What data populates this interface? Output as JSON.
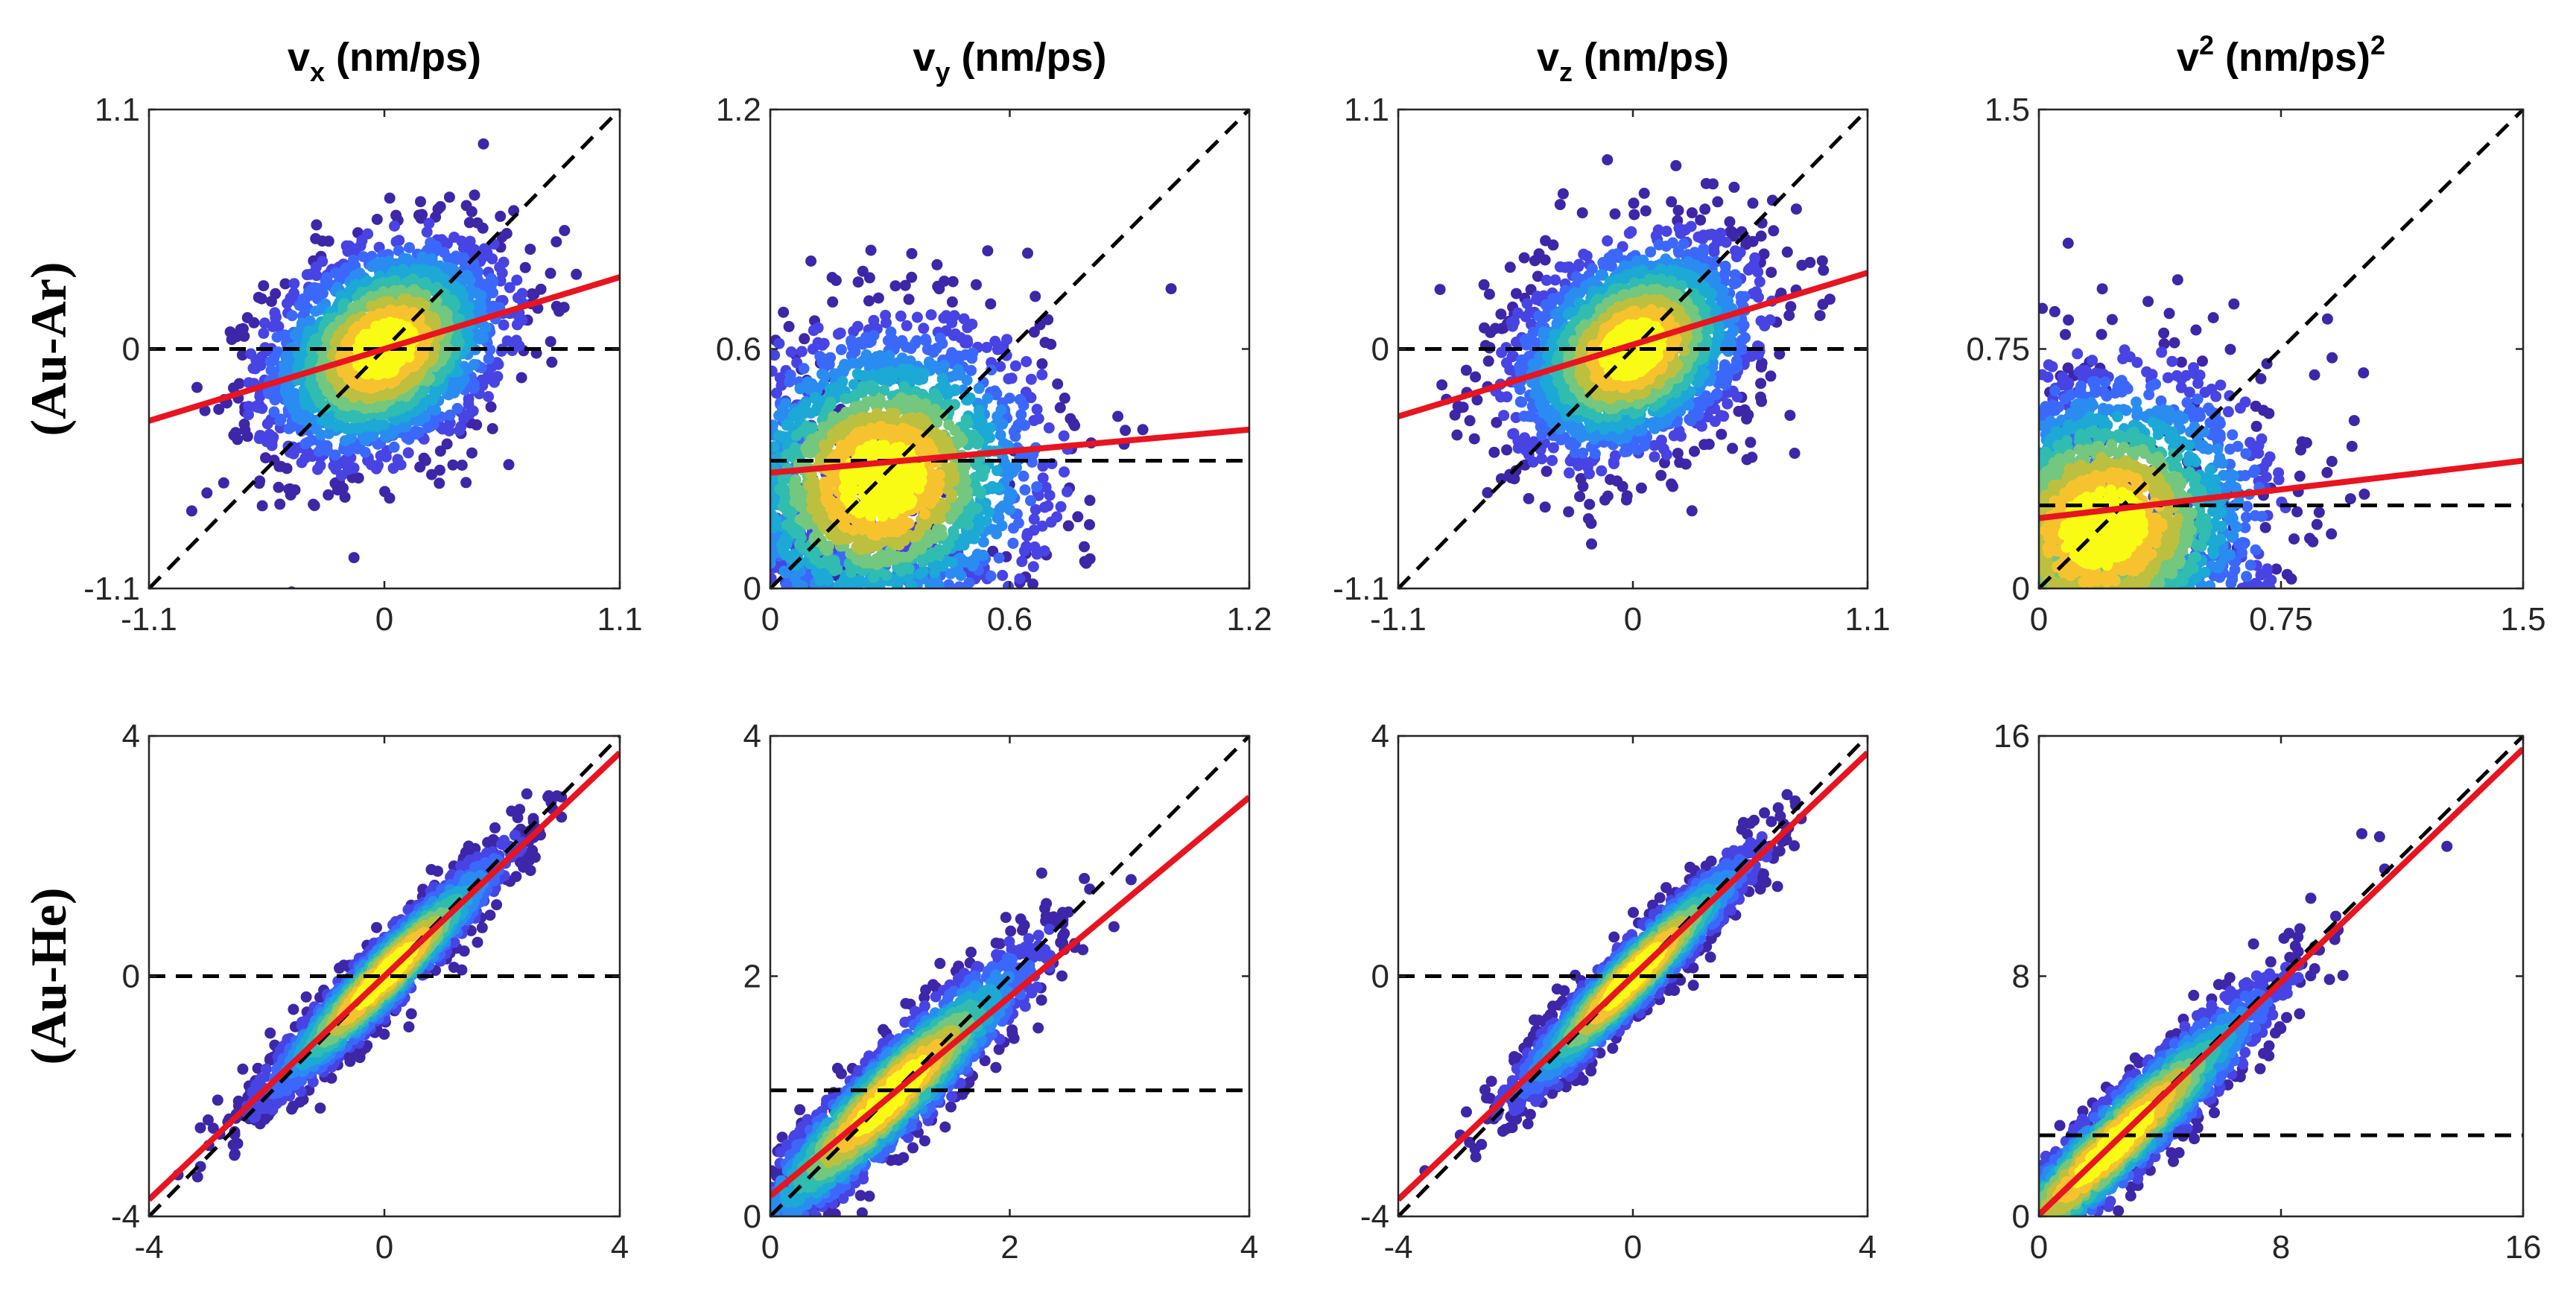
{
  "colors": {
    "colormap": [
      "#3e26a8",
      "#4744e3",
      "#3b68fb",
      "#2a8cf0",
      "#1ca9d5",
      "#30bcb0",
      "#73c77e",
      "#bdc03e",
      "#f6c32f",
      "#f9fb15"
    ],
    "fit_line": "#e8141f",
    "reference_lines": "#000000"
  },
  "rows": [
    "(Au-Ar)",
    "(Au-He)"
  ],
  "columns": [
    {
      "base": "v",
      "sub": "x",
      "sup": "",
      "unit": " (nm/ps)",
      "unit_sup": ""
    },
    {
      "base": "v",
      "sub": "y",
      "sup": "",
      "unit": " (nm/ps)",
      "unit_sup": ""
    },
    {
      "base": "v",
      "sub": "z",
      "sup": "",
      "unit": " (nm/ps)",
      "unit_sup": ""
    },
    {
      "base": "v",
      "sub": "",
      "sup": "2",
      "unit": " (nm/ps)",
      "unit_sup": "2"
    }
  ],
  "chart_data": [
    {
      "type": "scatter",
      "row": "(Au-Ar)",
      "column": "vx (nm/ps)",
      "xlim": [
        -1.1,
        1.1
      ],
      "ylim": [
        -1.1,
        1.1
      ],
      "xticks": [
        "-1.1",
        "0",
        "1.1"
      ],
      "yticks": [
        "-1.1",
        "0",
        "1.1"
      ],
      "center": [
        0,
        0
      ],
      "spread": [
        0.28,
        0.25
      ],
      "corr": 0.3,
      "n_points": 2200,
      "identity_line": [
        [
          -1.1,
          -1.1
        ],
        [
          1.1,
          1.1
        ]
      ],
      "mean_line": 0,
      "fit": {
        "slope": 0.3,
        "intercept": 0
      }
    },
    {
      "type": "scatter",
      "row": "(Au-Ar)",
      "column": "vy (nm/ps)",
      "xlim": [
        0,
        1.2
      ],
      "ylim": [
        0,
        1.2
      ],
      "xticks": [
        "0",
        "0.6",
        "1.2"
      ],
      "yticks": [
        "0",
        "0.6",
        "1.2"
      ],
      "center": [
        0.28,
        0.27
      ],
      "spread": [
        0.2,
        0.19
      ],
      "corr": 0.1,
      "n_points": 2200,
      "identity_line": [
        [
          0,
          0
        ],
        [
          1.2,
          1.2
        ]
      ],
      "mean_line": 0.32,
      "fit": {
        "slope": 0.09,
        "intercept": 0.29
      }
    },
    {
      "type": "scatter",
      "row": "(Au-Ar)",
      "column": "vz (nm/ps)",
      "xlim": [
        -1.1,
        1.1
      ],
      "ylim": [
        -1.1,
        1.1
      ],
      "xticks": [
        "-1.1",
        "0",
        "1.1"
      ],
      "yticks": [
        "-1.1",
        "0",
        "1.1"
      ],
      "center": [
        0,
        0
      ],
      "spread": [
        0.28,
        0.25
      ],
      "corr": 0.3,
      "n_points": 2200,
      "identity_line": [
        [
          -1.1,
          -1.1
        ],
        [
          1.1,
          1.1
        ]
      ],
      "mean_line": 0,
      "fit": {
        "slope": 0.3,
        "intercept": 0.02
      }
    },
    {
      "type": "scatter",
      "row": "(Au-Ar)",
      "column": "v2 (nm/ps)2",
      "xlim": [
        0,
        1.5
      ],
      "ylim": [
        0,
        1.5
      ],
      "xticks": [
        "0",
        "0.75",
        "1.5"
      ],
      "yticks": [
        "0",
        "0.75",
        "1.5"
      ],
      "center": [
        0.2,
        0.19
      ],
      "spread": [
        0.25,
        0.24
      ],
      "corr": 0.1,
      "n_points": 2200,
      "identity_line": [
        [
          0,
          0
        ],
        [
          1.5,
          1.5
        ]
      ],
      "mean_line": 0.26,
      "fit": {
        "slope": 0.12,
        "intercept": 0.22
      }
    },
    {
      "type": "scatter",
      "row": "(Au-He)",
      "column": "vx (nm/ps)",
      "xlim": [
        -4,
        4
      ],
      "ylim": [
        -4,
        4
      ],
      "xticks": [
        "-4",
        "0",
        "4"
      ],
      "yticks": [
        "-4",
        "0",
        "4"
      ],
      "center": [
        0,
        0
      ],
      "spread": [
        1.0,
        1.0
      ],
      "corr": 0.95,
      "n_points": 2200,
      "identity_line": [
        [
          -4,
          -4
        ],
        [
          4,
          4
        ]
      ],
      "mean_line": 0,
      "fit": {
        "slope": 0.93,
        "intercept": 0
      }
    },
    {
      "type": "scatter",
      "row": "(Au-He)",
      "column": "vy (nm/ps)",
      "xlim": [
        0,
        4
      ],
      "ylim": [
        0,
        4
      ],
      "xticks": [
        "0",
        "2",
        "4"
      ],
      "yticks": [
        "0",
        "2",
        "4"
      ],
      "center": [
        1.0,
        1.0
      ],
      "spread": [
        0.6,
        0.6
      ],
      "corr": 0.93,
      "n_points": 2200,
      "identity_line": [
        [
          0,
          0
        ],
        [
          4,
          4
        ]
      ],
      "mean_line": 1.05,
      "fit": {
        "slope": 0.83,
        "intercept": 0.17
      }
    },
    {
      "type": "scatter",
      "row": "(Au-He)",
      "column": "vz (nm/ps)",
      "xlim": [
        -4,
        4
      ],
      "ylim": [
        -4,
        4
      ],
      "xticks": [
        "-4",
        "0",
        "4"
      ],
      "yticks": [
        "-4",
        "0",
        "4"
      ],
      "center": [
        0,
        0
      ],
      "spread": [
        1.0,
        1.0
      ],
      "corr": 0.95,
      "n_points": 2200,
      "identity_line": [
        [
          -4,
          -4
        ],
        [
          4,
          4
        ]
      ],
      "mean_line": 0,
      "fit": {
        "slope": 0.93,
        "intercept": 0
      }
    },
    {
      "type": "scatter",
      "row": "(Au-He)",
      "column": "v2 (nm/ps)2",
      "xlim": [
        0,
        16
      ],
      "ylim": [
        0,
        16
      ],
      "xticks": [
        "0",
        "8",
        "16"
      ],
      "yticks": [
        "0",
        "8",
        "16"
      ],
      "center": [
        2.5,
        2.4
      ],
      "spread": [
        2.6,
        2.6
      ],
      "corr": 0.95,
      "n_points": 2200,
      "identity_line": [
        [
          0,
          0
        ],
        [
          16,
          16
        ]
      ],
      "mean_line": 2.7,
      "fit": {
        "slope": 0.97,
        "intercept": 0.05
      }
    }
  ]
}
